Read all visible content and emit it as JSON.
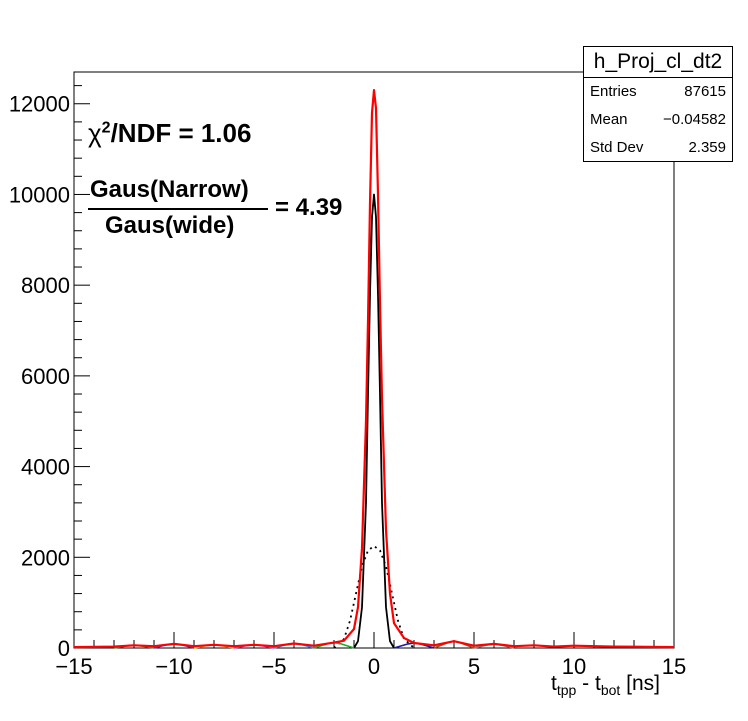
{
  "chart_data": {
    "type": "line",
    "histogram_name": "h_Proj_cl_dt2",
    "stats": [
      {
        "label": "Entries",
        "value": "87615"
      },
      {
        "label": "Mean",
        "value": "−0.04582"
      },
      {
        "label": "Std Dev",
        "value": "2.359"
      }
    ],
    "annotations": {
      "chi2_prefix": "χ",
      "chi2_sup": "2",
      "chi2_text": "/NDF = 1.06",
      "ratio_num": "Gaus(Narrow)",
      "ratio_den": "Gaus(wide)",
      "ratio_eq": "= 4.39"
    },
    "xlabel": {
      "t": "t",
      "sub1": "tpp",
      "mid": " - t",
      "sub2": "bot",
      "unit": " [ns]"
    },
    "xlim": [
      -15,
      15
    ],
    "ylim": [
      0,
      12700
    ],
    "x_ticks": [
      "−15",
      "−10",
      "−5",
      "0",
      "5",
      "10",
      "15"
    ],
    "x_tick_values": [
      -15,
      -10,
      -5,
      0,
      5,
      10,
      15
    ],
    "y_ticks": [
      "0",
      "2000",
      "4000",
      "6000",
      "8000",
      "10000",
      "12000"
    ],
    "y_tick_values": [
      0,
      2000,
      4000,
      6000,
      8000,
      10000,
      12000
    ],
    "series": [
      {
        "color": "#ff0000",
        "style": "solid",
        "points": [
          [
            -15,
            20
          ],
          [
            -13,
            30
          ],
          [
            -12,
            60
          ],
          [
            -11,
            40
          ],
          [
            -10,
            90
          ],
          [
            -9,
            40
          ],
          [
            -8,
            70
          ],
          [
            -7,
            40
          ],
          [
            -6,
            70
          ],
          [
            -5,
            40
          ],
          [
            -4,
            100
          ],
          [
            -3,
            50
          ],
          [
            -2,
            120
          ],
          [
            -1.5,
            160
          ],
          [
            -1,
            420
          ],
          [
            -0.8,
            900
          ],
          [
            -0.6,
            2200
          ],
          [
            -0.4,
            5000
          ],
          [
            -0.3,
            7200
          ],
          [
            -0.2,
            9800
          ],
          [
            -0.1,
            11800
          ],
          [
            0,
            12300
          ],
          [
            0.1,
            11900
          ],
          [
            0.2,
            10000
          ],
          [
            0.3,
            7600
          ],
          [
            0.4,
            5500
          ],
          [
            0.6,
            2600
          ],
          [
            0.8,
            1200
          ],
          [
            1,
            550
          ],
          [
            1.5,
            220
          ],
          [
            2,
            110
          ],
          [
            3,
            60
          ],
          [
            4,
            150
          ],
          [
            5,
            50
          ],
          [
            6,
            90
          ],
          [
            7,
            40
          ],
          [
            8,
            60
          ],
          [
            9,
            30
          ],
          [
            10,
            50
          ],
          [
            12,
            30
          ],
          [
            15,
            20
          ]
        ]
      },
      {
        "color": "#000000",
        "style": "solid",
        "points": [
          [
            -1,
            0
          ],
          [
            -0.8,
            150
          ],
          [
            -0.6,
            900
          ],
          [
            -0.4,
            3200
          ],
          [
            -0.3,
            5600
          ],
          [
            -0.2,
            7800
          ],
          [
            -0.1,
            9500
          ],
          [
            0,
            10000
          ],
          [
            0.1,
            9500
          ],
          [
            0.2,
            7800
          ],
          [
            0.3,
            5600
          ],
          [
            0.4,
            3200
          ],
          [
            0.6,
            900
          ],
          [
            0.8,
            150
          ],
          [
            1,
            0
          ]
        ]
      },
      {
        "color": "#000000",
        "style": "dotted",
        "points": [
          [
            -2,
            0
          ],
          [
            -1.5,
            200
          ],
          [
            -1.2,
            600
          ],
          [
            -0.9,
            1200
          ],
          [
            -0.6,
            1800
          ],
          [
            -0.3,
            2150
          ],
          [
            0,
            2250
          ],
          [
            0.3,
            2150
          ],
          [
            0.6,
            1800
          ],
          [
            0.9,
            1200
          ],
          [
            1.2,
            600
          ],
          [
            1.5,
            200
          ],
          [
            2,
            0
          ]
        ]
      },
      {
        "color": "#4b2fc9",
        "style": "solid",
        "points": [
          [
            -11,
            0
          ],
          [
            -10.4,
            70
          ],
          [
            -10,
            90
          ],
          [
            -9.6,
            70
          ],
          [
            -9,
            0
          ]
        ]
      },
      {
        "color": "#20a020",
        "style": "solid",
        "points": [
          [
            -13,
            0
          ],
          [
            -12.3,
            50
          ],
          [
            -12,
            60
          ],
          [
            -11.7,
            50
          ],
          [
            -11,
            0
          ]
        ]
      },
      {
        "color": "#e8b800",
        "style": "solid",
        "points": [
          [
            -9,
            0
          ],
          [
            -8.3,
            60
          ],
          [
            -8,
            70
          ],
          [
            -7.7,
            60
          ],
          [
            -7,
            0
          ]
        ]
      },
      {
        "color": "#e020e0",
        "style": "solid",
        "points": [
          [
            -7,
            0
          ],
          [
            -6.3,
            60
          ],
          [
            -6,
            70
          ],
          [
            -5.7,
            60
          ],
          [
            -5,
            0
          ]
        ]
      },
      {
        "color": "#1e90ff",
        "style": "solid",
        "points": [
          [
            -5,
            0
          ],
          [
            -4.3,
            85
          ],
          [
            -4,
            100
          ],
          [
            -3.7,
            85
          ],
          [
            -3,
            0
          ]
        ]
      },
      {
        "color": "#22aa22",
        "style": "solid",
        "points": [
          [
            -3,
            0
          ],
          [
            -2.3,
            100
          ],
          [
            -2,
            120
          ],
          [
            -1.7,
            100
          ],
          [
            -1,
            0
          ]
        ]
      },
      {
        "color": "#1a1aa0",
        "style": "solid",
        "points": [
          [
            1,
            0
          ],
          [
            1.7,
            90
          ],
          [
            2,
            110
          ],
          [
            2.3,
            90
          ],
          [
            3,
            0
          ]
        ]
      },
      {
        "color": "#a05020",
        "style": "solid",
        "points": [
          [
            3,
            0
          ],
          [
            3.7,
            120
          ],
          [
            4,
            150
          ],
          [
            4.3,
            120
          ],
          [
            5,
            0
          ]
        ]
      },
      {
        "color": "#808080",
        "style": "solid",
        "points": [
          [
            5,
            0
          ],
          [
            5.7,
            70
          ],
          [
            6,
            90
          ],
          [
            6.3,
            70
          ],
          [
            7,
            0
          ]
        ]
      }
    ]
  }
}
